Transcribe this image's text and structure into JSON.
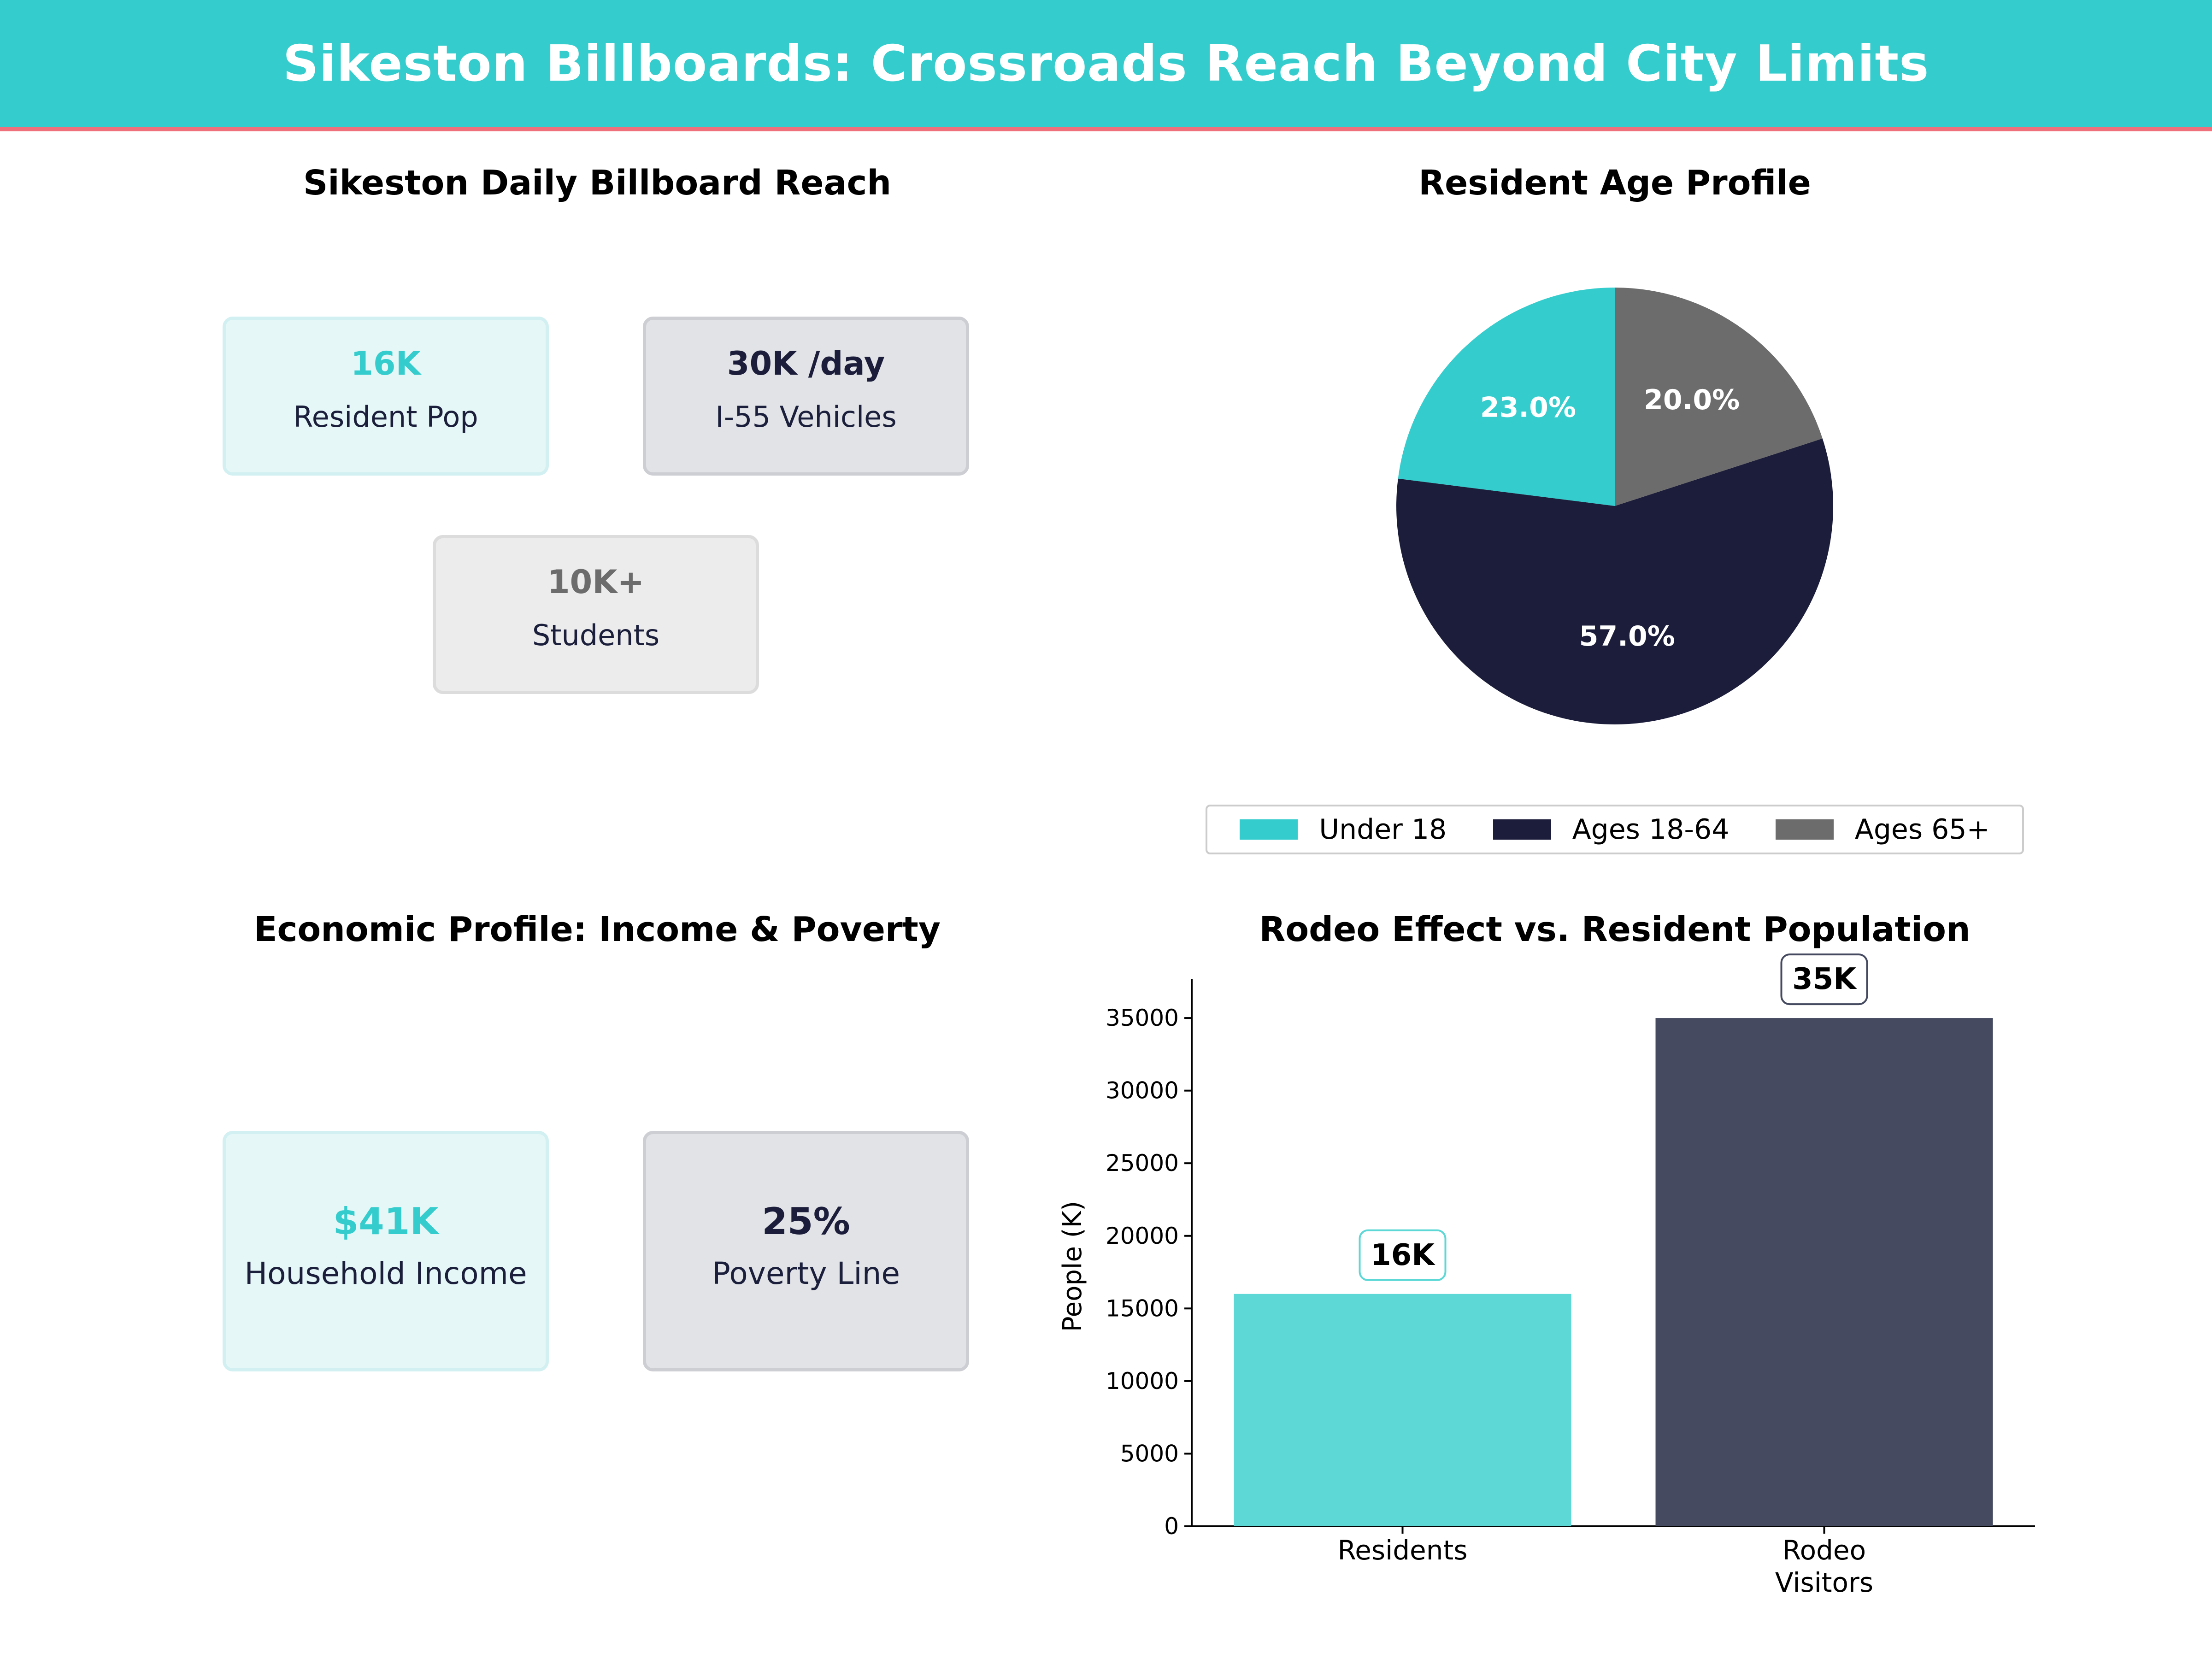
{
  "header": {
    "title": "Sikeston Billboards: Crossroads Reach Beyond City Limits"
  },
  "colors": {
    "teal": "#35cccd",
    "navy": "#1b1d3a",
    "gray": "#6c6c6c",
    "accent_line": "#ef6f7a",
    "bar_residents": "#5dd8d6",
    "bar_visitors": "#454a61"
  },
  "reach_panel": {
    "title": "Sikeston Daily Billboard Reach",
    "kpis": [
      {
        "value": "16K",
        "label": "Resident Pop"
      },
      {
        "value": "30K /day",
        "label": "I-55 Vehicles"
      },
      {
        "value": "10K+",
        "label": "Students"
      }
    ]
  },
  "economic_panel": {
    "title": "Economic Profile: Income & Poverty",
    "kpis": [
      {
        "value": "$41K",
        "label": "Household Income"
      },
      {
        "value": "25%",
        "label": "Poverty Line"
      }
    ]
  },
  "chart_data": [
    {
      "type": "pie",
      "title": "Resident Age Profile",
      "categories": [
        "Under 18",
        "Ages 18-64",
        "Ages 65+"
      ],
      "values": [
        23.0,
        57.0,
        20.0
      ],
      "value_labels": [
        "23.0%",
        "57.0%",
        "20.0%"
      ],
      "colors": [
        "#35cccd",
        "#1b1d3a",
        "#6c6c6c"
      ],
      "legend": "bottom"
    },
    {
      "type": "bar",
      "title": "Rodeo Effect vs. Resident Population",
      "categories": [
        "Residents",
        "Rodeo\nVisitors"
      ],
      "values": [
        16000,
        35000
      ],
      "value_labels": [
        "16K",
        "35K"
      ],
      "xlabel": "",
      "ylabel": "People (K)",
      "ylim": [
        0,
        37700
      ],
      "yticks": [
        0,
        5000,
        10000,
        15000,
        20000,
        25000,
        30000,
        35000
      ],
      "grid": false,
      "colors": [
        "#5dd8d6",
        "#454a61"
      ]
    }
  ]
}
